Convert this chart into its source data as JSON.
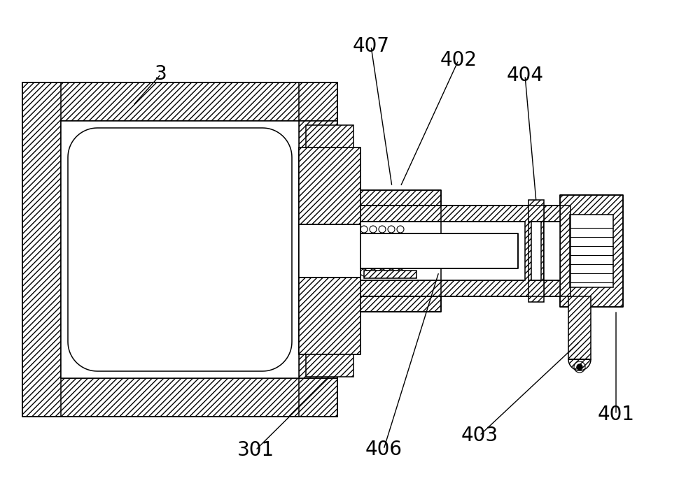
{
  "bg_color": "#ffffff",
  "line_color": "#000000",
  "hatch_pattern": "////",
  "label_fontsize": 20,
  "figsize": [
    10.0,
    7.21
  ],
  "dpi": 100,
  "lw": 1.1
}
